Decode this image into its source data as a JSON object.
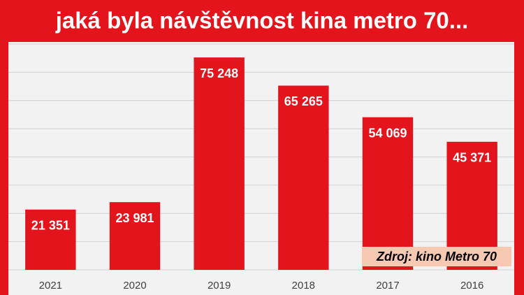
{
  "chart_data": {
    "type": "bar",
    "title": "jaká byla návštěvnost kina metro 70...",
    "categories": [
      "2021",
      "2020",
      "2019",
      "2018",
      "2017",
      "2016"
    ],
    "values": [
      21351,
      23981,
      75248,
      65265,
      54069,
      45371
    ],
    "value_labels": [
      "21 351",
      "23 981",
      "75 248",
      "65 265",
      "54 069",
      "45 371"
    ],
    "color": "#e3141b",
    "ylim": [
      0,
      80000
    ],
    "yticks": [
      0,
      10000,
      20000,
      30000,
      40000,
      50000,
      60000,
      70000,
      80000
    ],
    "grid": true,
    "annotation": "Zdroj: kino Metro 70"
  }
}
